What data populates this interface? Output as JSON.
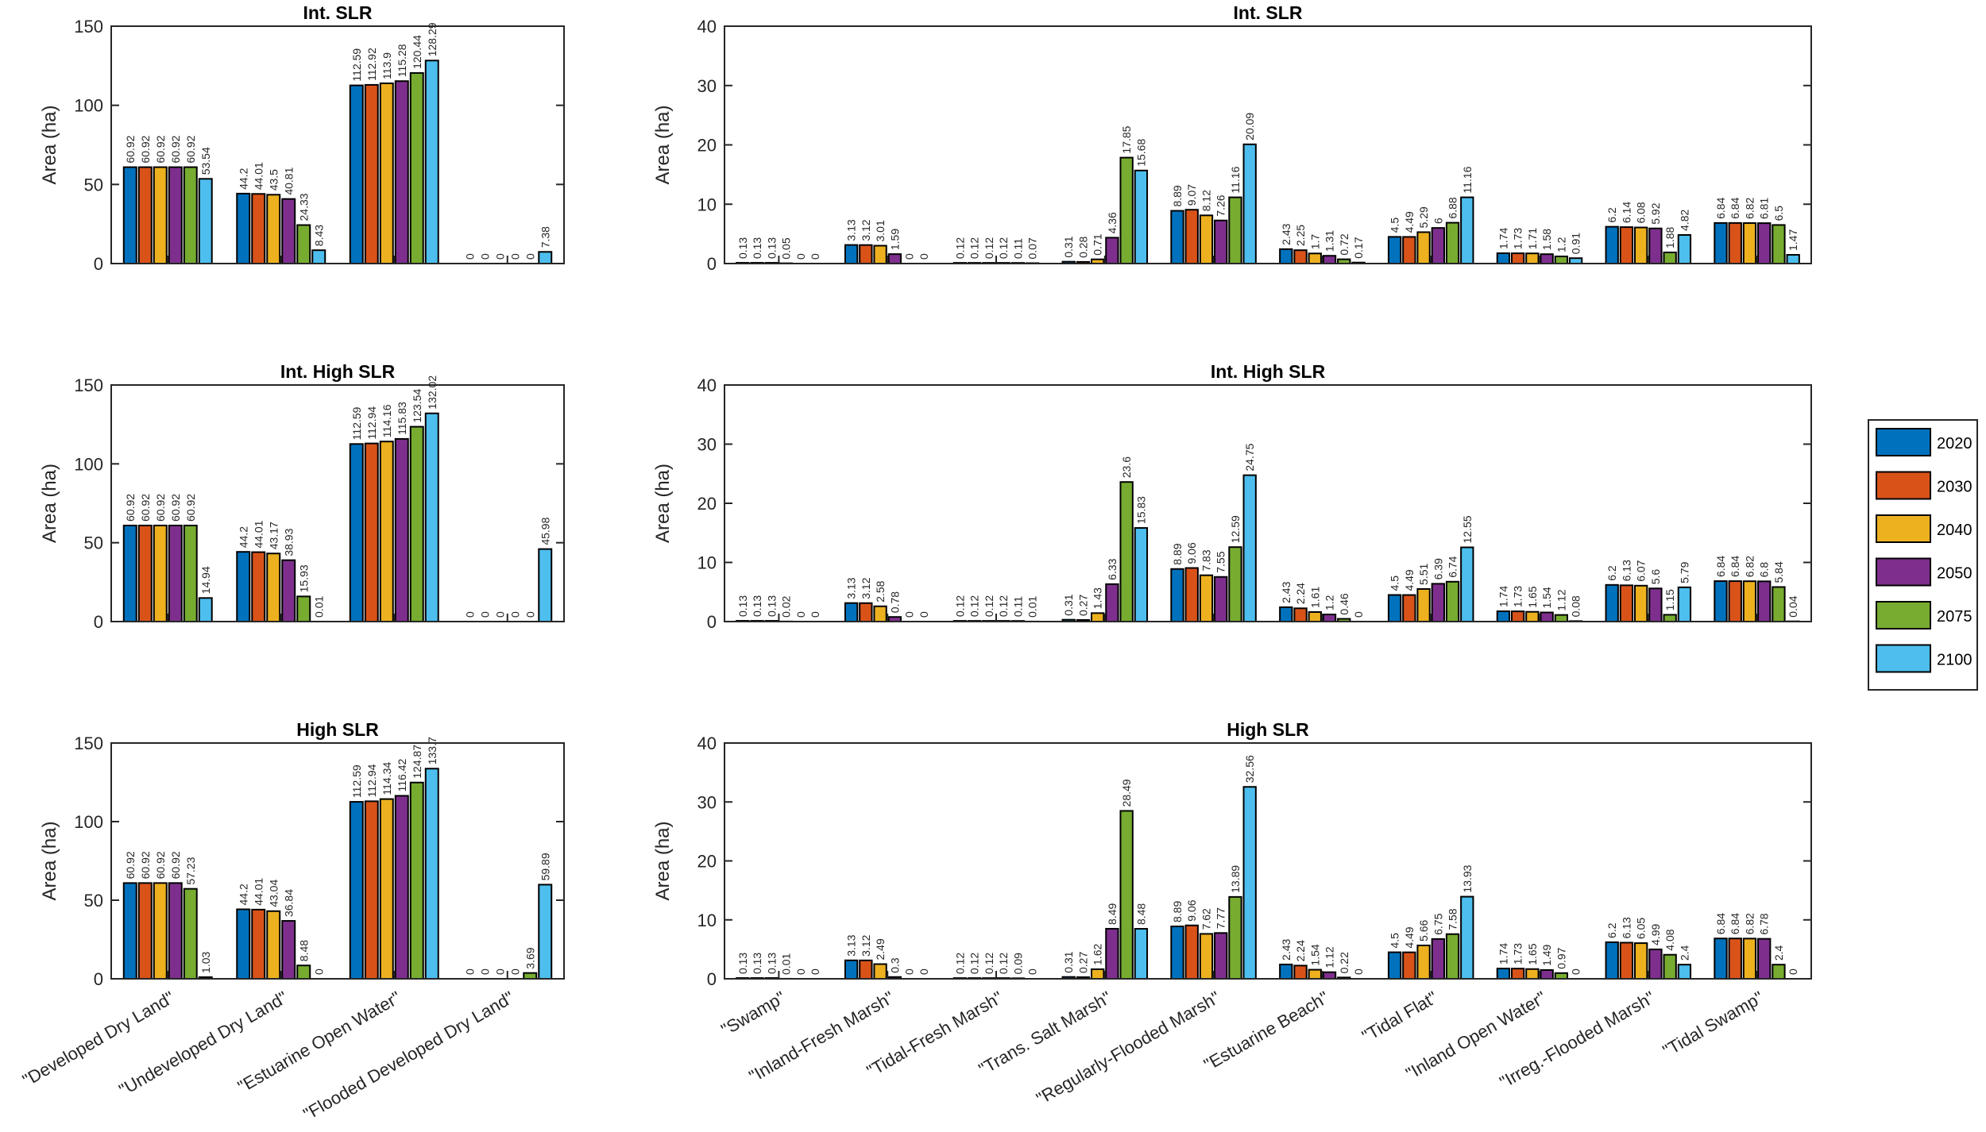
{
  "legend": {
    "entries": [
      "2020",
      "2030",
      "2040",
      "2050",
      "2075",
      "2100"
    ],
    "colors": [
      "#0072BD",
      "#D95319",
      "#EDB120",
      "#7E2F8E",
      "#77AC30",
      "#4DBEEE"
    ],
    "placement": "right"
  },
  "chart_data": [
    {
      "type": "bar",
      "title": "Int. SLR",
      "ylabel": "Area (ha)",
      "ylim": [
        0,
        150
      ],
      "yticks": [
        0,
        50,
        100,
        150
      ],
      "categories": [
        "\"Developed Dry Land\"",
        "\"Undeveloped Dry Land\"",
        "\"Estuarine Open Water\"",
        "\"Flooded Developed Dry Land\""
      ],
      "series": [
        {
          "name": "2020",
          "values": [
            60.92,
            44.2,
            112.59,
            0
          ]
        },
        {
          "name": "2030",
          "values": [
            60.92,
            44.01,
            112.92,
            0
          ]
        },
        {
          "name": "2040",
          "values": [
            60.92,
            43.5,
            113.9,
            0
          ]
        },
        {
          "name": "2050",
          "values": [
            60.92,
            40.81,
            115.28,
            0
          ]
        },
        {
          "name": "2075",
          "values": [
            60.92,
            24.33,
            120.44,
            0
          ]
        },
        {
          "name": "2100",
          "values": [
            53.54,
            8.43,
            128.29,
            7.38
          ]
        }
      ]
    },
    {
      "type": "bar",
      "title": "Int. SLR",
      "ylabel": "Area (ha)",
      "ylim": [
        0,
        40
      ],
      "yticks": [
        0,
        10,
        20,
        30,
        40
      ],
      "categories": [
        "\"Swamp\"",
        "\"Inland-Fresh Marsh\"",
        "\"Tidal-Fresh Marsh\"",
        "\"Trans. Salt Marsh\"",
        "\"Regularly-Flooded Marsh\"",
        "\"Estuarine Beach\"",
        "\"Tidal Flat\"",
        "\"Inland Open Water\"",
        "\"Irreg.-Flooded Marsh\"",
        "\"Tidal Swamp\""
      ],
      "series": [
        {
          "name": "2020",
          "values": [
            0.13,
            3.13,
            0.12,
            0.31,
            8.89,
            2.43,
            4.5,
            1.74,
            6.2,
            6.84
          ]
        },
        {
          "name": "2030",
          "values": [
            0.13,
            3.12,
            0.12,
            0.28,
            9.07,
            2.25,
            4.49,
            1.73,
            6.14,
            6.84
          ]
        },
        {
          "name": "2040",
          "values": [
            0.13,
            3.01,
            0.12,
            0.71,
            8.12,
            1.7,
            5.29,
            1.71,
            6.08,
            6.82
          ]
        },
        {
          "name": "2050",
          "values": [
            0.05,
            1.59,
            0.12,
            4.36,
            7.26,
            1.31,
            6,
            1.58,
            5.92,
            6.81
          ]
        },
        {
          "name": "2075",
          "values": [
            0,
            0,
            0.11,
            17.85,
            11.16,
            0.72,
            6.88,
            1.2,
            1.88,
            6.5
          ]
        },
        {
          "name": "2100",
          "values": [
            0,
            0,
            0.07,
            15.68,
            20.09,
            0.17,
            11.16,
            0.91,
            4.82,
            1.47
          ]
        }
      ]
    },
    {
      "type": "bar",
      "title": "Int. High SLR",
      "ylabel": "Area (ha)",
      "ylim": [
        0,
        150
      ],
      "yticks": [
        0,
        50,
        100,
        150
      ],
      "categories": [
        "\"Developed Dry Land\"",
        "\"Undeveloped Dry Land\"",
        "\"Estuarine Open Water\"",
        "\"Flooded Developed Dry Land\""
      ],
      "series": [
        {
          "name": "2020",
          "values": [
            60.92,
            44.2,
            112.59,
            0
          ]
        },
        {
          "name": "2030",
          "values": [
            60.92,
            44.01,
            112.94,
            0
          ]
        },
        {
          "name": "2040",
          "values": [
            60.92,
            43.17,
            114.16,
            0
          ]
        },
        {
          "name": "2050",
          "values": [
            60.92,
            38.93,
            115.83,
            0
          ]
        },
        {
          "name": "2075",
          "values": [
            60.92,
            15.93,
            123.54,
            0
          ]
        },
        {
          "name": "2100",
          "values": [
            14.94,
            0.01,
            132.02,
            45.98
          ]
        }
      ]
    },
    {
      "type": "bar",
      "title": "Int. High SLR",
      "ylabel": "Area (ha)",
      "ylim": [
        0,
        40
      ],
      "yticks": [
        0,
        10,
        20,
        30,
        40
      ],
      "categories": [
        "\"Swamp\"",
        "\"Inland-Fresh Marsh\"",
        "\"Tidal-Fresh Marsh\"",
        "\"Trans. Salt Marsh\"",
        "\"Regularly-Flooded Marsh\"",
        "\"Estuarine Beach\"",
        "\"Tidal Flat\"",
        "\"Inland Open Water\"",
        "\"Irreg.-Flooded Marsh\"",
        "\"Tidal Swamp\""
      ],
      "series": [
        {
          "name": "2020",
          "values": [
            0.13,
            3.13,
            0.12,
            0.31,
            8.89,
            2.43,
            4.5,
            1.74,
            6.2,
            6.84
          ]
        },
        {
          "name": "2030",
          "values": [
            0.13,
            3.12,
            0.12,
            0.27,
            9.06,
            2.24,
            4.49,
            1.73,
            6.13,
            6.84
          ]
        },
        {
          "name": "2040",
          "values": [
            0.13,
            2.58,
            0.12,
            1.43,
            7.83,
            1.61,
            5.51,
            1.65,
            6.07,
            6.82
          ]
        },
        {
          "name": "2050",
          "values": [
            0.02,
            0.78,
            0.12,
            6.33,
            7.55,
            1.2,
            6.39,
            1.54,
            5.6,
            6.8
          ]
        },
        {
          "name": "2075",
          "values": [
            0,
            0,
            0.11,
            23.6,
            12.59,
            0.46,
            6.74,
            1.12,
            1.15,
            5.84
          ]
        },
        {
          "name": "2100",
          "values": [
            0,
            0,
            0.01,
            15.83,
            24.75,
            0,
            12.55,
            0.08,
            5.79,
            0.04
          ]
        }
      ]
    },
    {
      "type": "bar",
      "title": "High SLR",
      "ylabel": "Area (ha)",
      "ylim": [
        0,
        150
      ],
      "yticks": [
        0,
        50,
        100,
        150
      ],
      "categories": [
        "\"Developed Dry Land\"",
        "\"Undeveloped Dry Land\"",
        "\"Estuarine Open Water\"",
        "\"Flooded Developed Dry Land\""
      ],
      "series": [
        {
          "name": "2020",
          "values": [
            60.92,
            44.2,
            112.59,
            0
          ]
        },
        {
          "name": "2030",
          "values": [
            60.92,
            44.01,
            112.94,
            0
          ]
        },
        {
          "name": "2040",
          "values": [
            60.92,
            43.04,
            114.34,
            0
          ]
        },
        {
          "name": "2050",
          "values": [
            60.92,
            36.84,
            116.42,
            0
          ]
        },
        {
          "name": "2075",
          "values": [
            57.23,
            8.48,
            124.87,
            3.69
          ]
        },
        {
          "name": "2100",
          "values": [
            1.03,
            0,
            133.7,
            59.89
          ]
        }
      ]
    },
    {
      "type": "bar",
      "title": "High SLR",
      "ylabel": "Area (ha)",
      "ylim": [
        0,
        40
      ],
      "yticks": [
        0,
        10,
        20,
        30,
        40
      ],
      "categories": [
        "\"Swamp\"",
        "\"Inland-Fresh Marsh\"",
        "\"Tidal-Fresh Marsh\"",
        "\"Trans. Salt Marsh\"",
        "\"Regularly-Flooded Marsh\"",
        "\"Estuarine Beach\"",
        "\"Tidal Flat\"",
        "\"Inland Open Water\"",
        "\"Irreg.-Flooded Marsh\"",
        "\"Tidal Swamp\""
      ],
      "series": [
        {
          "name": "2020",
          "values": [
            0.13,
            3.13,
            0.12,
            0.31,
            8.89,
            2.43,
            4.5,
            1.74,
            6.2,
            6.84
          ]
        },
        {
          "name": "2030",
          "values": [
            0.13,
            3.12,
            0.12,
            0.27,
            9.06,
            2.24,
            4.49,
            1.73,
            6.13,
            6.84
          ]
        },
        {
          "name": "2040",
          "values": [
            0.13,
            2.49,
            0.12,
            1.62,
            7.62,
            1.54,
            5.66,
            1.65,
            6.05,
            6.82
          ]
        },
        {
          "name": "2050",
          "values": [
            0.01,
            0.3,
            0.12,
            8.49,
            7.77,
            1.12,
            6.75,
            1.49,
            4.99,
            6.78
          ]
        },
        {
          "name": "2075",
          "values": [
            0,
            0,
            0.09,
            28.49,
            13.89,
            0.22,
            7.58,
            0.97,
            4.08,
            2.4
          ]
        },
        {
          "name": "2100",
          "values": [
            0,
            0,
            0,
            8.48,
            32.56,
            0,
            13.93,
            0,
            2.4,
            0
          ]
        }
      ]
    }
  ]
}
